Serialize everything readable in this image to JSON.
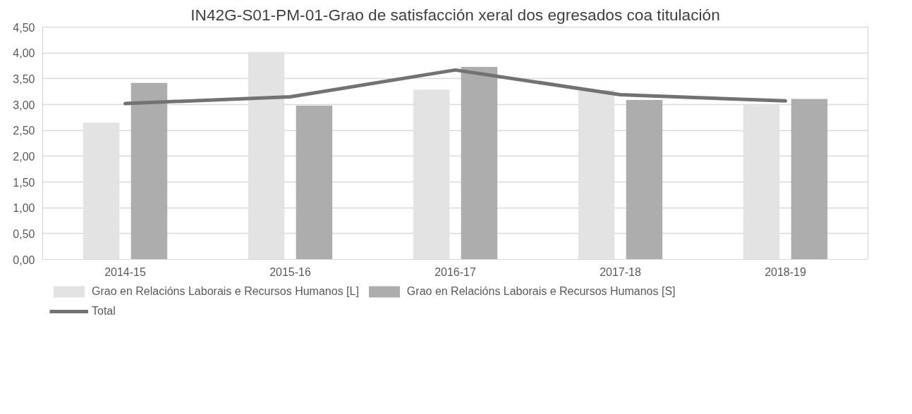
{
  "chart_data": {
    "type": "bar",
    "title": "IN42G-S01-PM-01-Grao de satisfacción xeral dos egresados coa titulación",
    "categories": [
      "2014-15",
      "2015-16",
      "2016-17",
      "2017-18",
      "2018-19"
    ],
    "series": [
      {
        "name": "Grao en Relacións Laborais e Recursos Humanos [L]",
        "color": "#e3e3e3",
        "values": [
          2.65,
          4.02,
          3.29,
          3.28,
          2.99
        ]
      },
      {
        "name": "Grao en Relacións Laborais e Recursos Humanos [S]",
        "color": "#adadad",
        "values": [
          3.42,
          2.98,
          3.73,
          3.09,
          3.11
        ]
      },
      {
        "name": "Total",
        "type": "line",
        "color": "#727272",
        "values": [
          3.02,
          3.15,
          3.67,
          3.19,
          3.07
        ]
      }
    ],
    "ylim": [
      0,
      4.5
    ],
    "yticks": [
      {
        "value": 0,
        "label": "0,00"
      },
      {
        "value": 0.5,
        "label": "0,50"
      },
      {
        "value": 1,
        "label": "1,00"
      },
      {
        "value": 1.5,
        "label": "1,50"
      },
      {
        "value": 2,
        "label": "2,00"
      },
      {
        "value": 2.5,
        "label": "2,50"
      },
      {
        "value": 3,
        "label": "3,00"
      },
      {
        "value": 3.5,
        "label": "3,50"
      },
      {
        "value": 4,
        "label": "4,00"
      },
      {
        "value": 4.5,
        "label": "4,50"
      }
    ],
    "grid": "y",
    "legend": "bottom"
  }
}
